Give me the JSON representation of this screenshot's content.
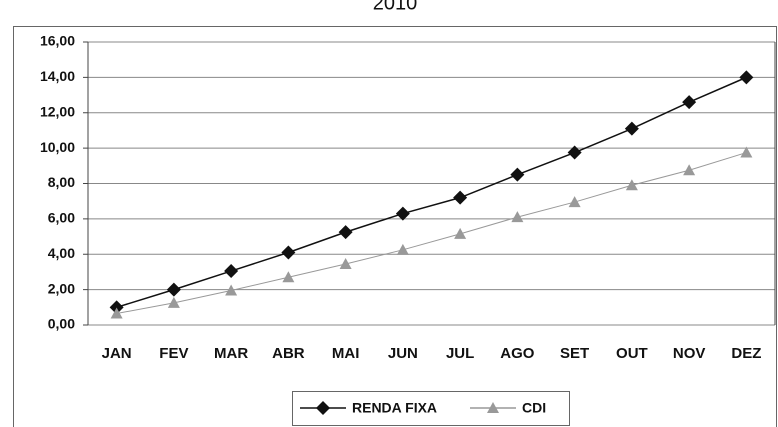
{
  "chart_data": {
    "type": "line",
    "title": "2010",
    "categories": [
      "JAN",
      "FEV",
      "MAR",
      "ABR",
      "MAI",
      "JUN",
      "JUL",
      "AGO",
      "SET",
      "OUT",
      "NOV",
      "DEZ"
    ],
    "series": [
      {
        "name": "RENDA FIXA",
        "color": "#111111",
        "marker": "diamond",
        "values": [
          1.0,
          2.0,
          3.05,
          4.1,
          5.25,
          6.3,
          7.2,
          8.5,
          9.75,
          11.1,
          12.6,
          14.0
        ]
      },
      {
        "name": "CDI",
        "color": "#999999",
        "marker": "triangle",
        "values": [
          0.65,
          1.25,
          1.95,
          2.7,
          3.45,
          4.25,
          5.15,
          6.1,
          6.95,
          7.9,
          8.75,
          9.75
        ]
      }
    ],
    "ylim": [
      0,
      16
    ],
    "yticks": [
      {
        "value": 0,
        "label": "0,00"
      },
      {
        "value": 2,
        "label": "2,00"
      },
      {
        "value": 4,
        "label": "4,00"
      },
      {
        "value": 6,
        "label": "6,00"
      },
      {
        "value": 8,
        "label": "8,00"
      },
      {
        "value": 10,
        "label": "10,00"
      },
      {
        "value": 12,
        "label": "12,00"
      },
      {
        "value": 14,
        "label": "14,00"
      },
      {
        "value": 16,
        "label": "16,00"
      }
    ],
    "grid": true,
    "legend": "bottom"
  }
}
